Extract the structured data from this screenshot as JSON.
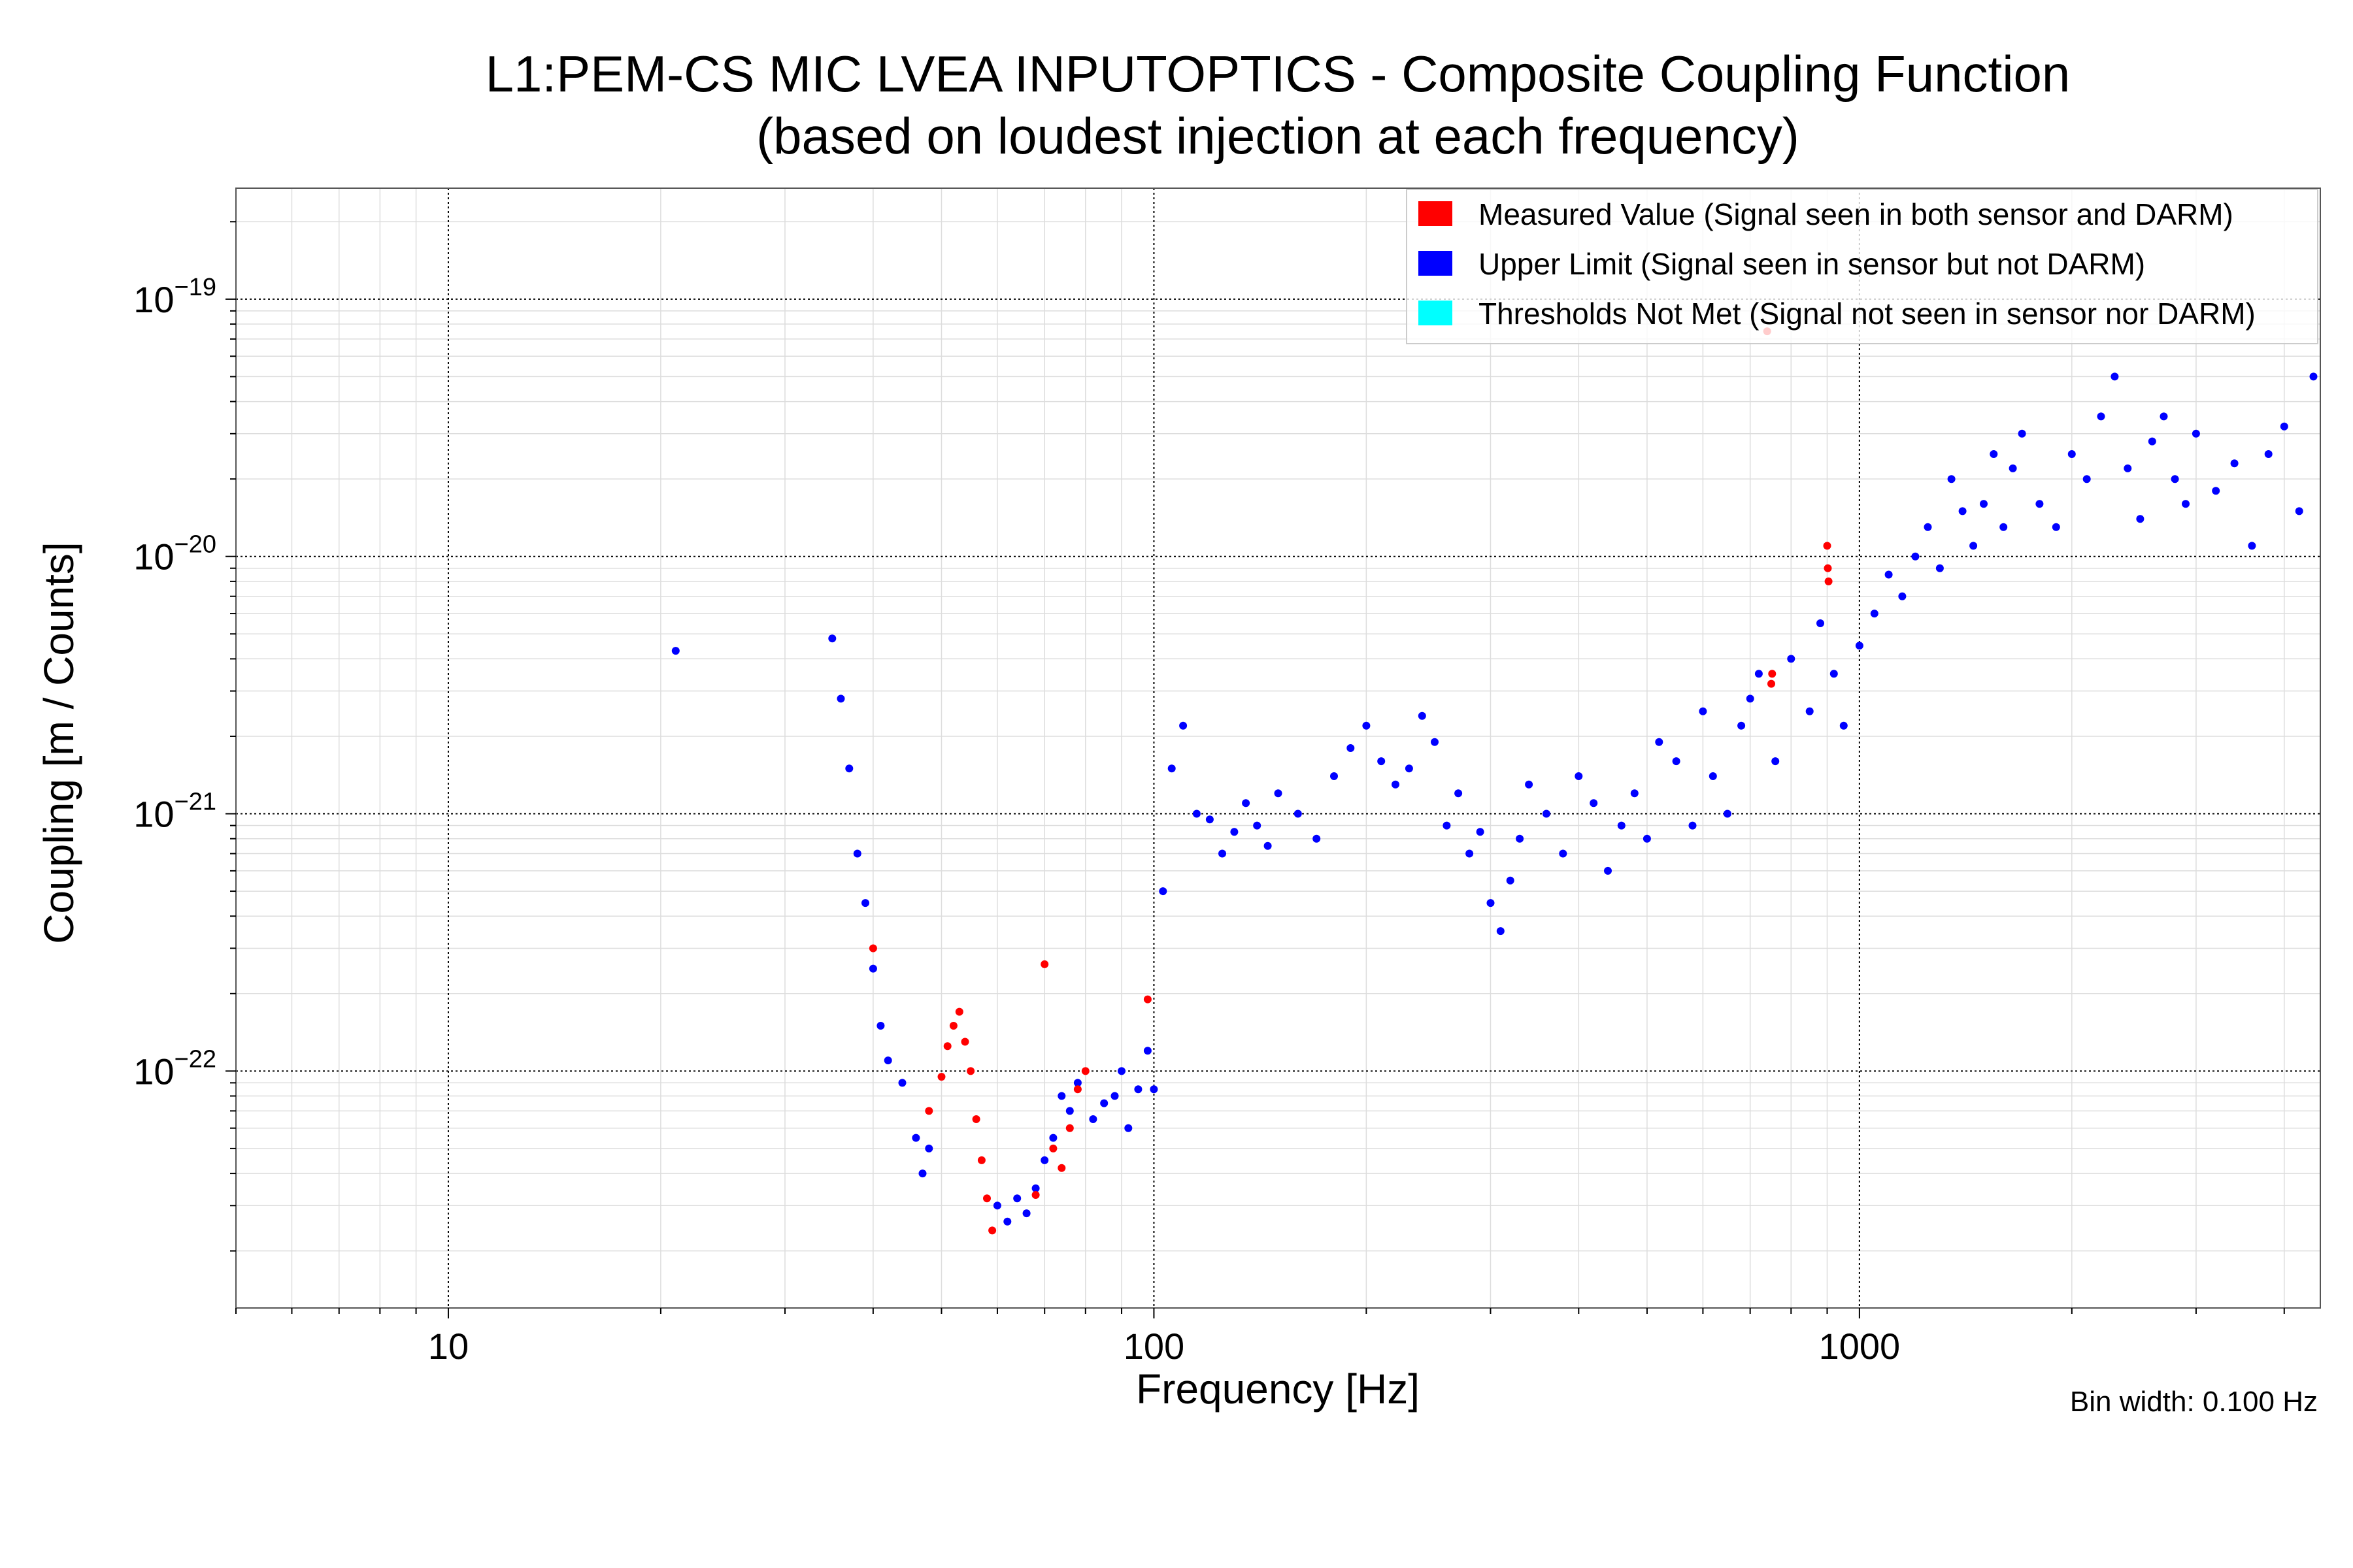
{
  "chart_data": {
    "type": "scatter",
    "title": "L1:PEM-CS MIC LVEA INPUTOPTICS - Composite Coupling Function",
    "subtitle": "(based on loudest injection at each frequency)",
    "xlabel": "Frequency [Hz]",
    "ylabel": "Coupling [m / Counts]",
    "xscale": "log",
    "yscale": "log",
    "xlim": [
      5,
      4500
    ],
    "ylim": [
      1.2e-23,
      2.7e-19
    ],
    "x_ticks": [
      {
        "value": 10,
        "label": "10"
      },
      {
        "value": 100,
        "label": "100"
      },
      {
        "value": 1000,
        "label": "1000"
      }
    ],
    "y_ticks": [
      {
        "value": 1e-22,
        "base": "10",
        "exp": "−22"
      },
      {
        "value": 1e-21,
        "base": "10",
        "exp": "−21"
      },
      {
        "value": 1e-20,
        "base": "10",
        "exp": "−20"
      },
      {
        "value": 1e-19,
        "base": "10",
        "exp": "−19"
      }
    ],
    "grid": true,
    "legend_position": "top-right",
    "annotation": "Bin width: 0.100 Hz",
    "colors": {
      "measured": "#ff0000",
      "upper_limit": "#0000ff",
      "not_met": "#00ffff"
    },
    "series": [
      {
        "name": "Measured Value (Signal seen in both sensor and DARM)",
        "key": "measured",
        "x": [
          40,
          48,
          50,
          51,
          52,
          53,
          54,
          55,
          56,
          57,
          58,
          59,
          68,
          70,
          72,
          74,
          76,
          78,
          80,
          98,
          740,
          750,
          752,
          900,
          902,
          904
        ],
        "y": [
          3e-22,
          7e-23,
          9.5e-23,
          1.25e-22,
          1.5e-22,
          1.7e-22,
          1.3e-22,
          1e-22,
          6.5e-23,
          4.5e-23,
          3.2e-23,
          2.4e-23,
          3.3e-23,
          2.6e-22,
          5e-23,
          4.2e-23,
          6e-23,
          8.5e-23,
          1e-22,
          1.9e-22,
          7.5e-20,
          3.2e-21,
          3.5e-21,
          1.1e-20,
          9e-21,
          8e-21
        ]
      },
      {
        "name": "Upper Limit (Signal seen in sensor but not DARM)",
        "key": "upper_limit",
        "x": [
          21,
          35,
          36,
          37,
          38,
          39,
          40,
          41,
          42,
          44,
          46,
          47,
          48,
          60,
          62,
          64,
          66,
          68,
          70,
          72,
          74,
          76,
          78,
          82,
          85,
          88,
          90,
          92,
          95,
          98,
          100,
          103,
          106,
          110,
          115,
          120,
          125,
          130,
          135,
          140,
          145,
          150,
          160,
          170,
          180,
          190,
          200,
          210,
          220,
          230,
          240,
          250,
          260,
          270,
          280,
          290,
          300,
          310,
          320,
          330,
          340,
          360,
          380,
          400,
          420,
          440,
          460,
          480,
          500,
          520,
          550,
          580,
          600,
          620,
          650,
          680,
          700,
          720,
          760,
          800,
          850,
          880,
          920,
          950,
          1000,
          1050,
          1100,
          1150,
          1200,
          1250,
          1300,
          1350,
          1400,
          1450,
          1500,
          1550,
          1600,
          1650,
          1700,
          1800,
          1900,
          2000,
          2100,
          2200,
          2300,
          2400,
          2500,
          2600,
          2700,
          2800,
          2900,
          3000,
          3200,
          3400,
          3600,
          3800,
          4000,
          4200,
          4400
        ],
        "y": [
          4.3e-21,
          4.8e-21,
          2.8e-21,
          1.5e-21,
          7e-22,
          4.5e-22,
          2.5e-22,
          1.5e-22,
          1.1e-22,
          9e-23,
          5.5e-23,
          4e-23,
          5e-23,
          3e-23,
          2.6e-23,
          3.2e-23,
          2.8e-23,
          3.5e-23,
          4.5e-23,
          5.5e-23,
          8e-23,
          7e-23,
          9e-23,
          6.5e-23,
          7.5e-23,
          8e-23,
          1e-22,
          6e-23,
          8.5e-23,
          1.2e-22,
          8.5e-23,
          5e-22,
          1.5e-21,
          2.2e-21,
          1e-21,
          9.5e-22,
          7e-22,
          8.5e-22,
          1.1e-21,
          9e-22,
          7.5e-22,
          1.2e-21,
          1e-21,
          8e-22,
          1.4e-21,
          1.8e-21,
          2.2e-21,
          1.6e-21,
          1.3e-21,
          1.5e-21,
          2.4e-21,
          1.9e-21,
          9e-22,
          1.2e-21,
          7e-22,
          8.5e-22,
          4.5e-22,
          3.5e-22,
          5.5e-22,
          8e-22,
          1.3e-21,
          1e-21,
          7e-22,
          1.4e-21,
          1.1e-21,
          6e-22,
          9e-22,
          1.2e-21,
          8e-22,
          1.9e-21,
          1.6e-21,
          9e-22,
          2.5e-21,
          1.4e-21,
          1e-21,
          2.2e-21,
          2.8e-21,
          3.5e-21,
          1.6e-21,
          4e-21,
          2.5e-21,
          5.5e-21,
          3.5e-21,
          2.2e-21,
          4.5e-21,
          6e-21,
          8.5e-21,
          7e-21,
          1e-20,
          1.3e-20,
          9e-21,
          2e-20,
          1.5e-20,
          1.1e-20,
          1.6e-20,
          2.5e-20,
          1.3e-20,
          2.2e-20,
          3e-20,
          1.6e-20,
          1.3e-20,
          2.5e-20,
          2e-20,
          3.5e-20,
          5e-20,
          2.2e-20,
          1.4e-20,
          2.8e-20,
          3.5e-20,
          2e-20,
          1.6e-20,
          3e-20,
          1.8e-20,
          2.3e-20,
          1.1e-20,
          2.5e-20,
          3.2e-20,
          1.5e-20,
          5e-20
        ]
      },
      {
        "name": "Thresholds Not Met (Signal not seen in sensor nor DARM)",
        "key": "not_met",
        "x": [],
        "y": []
      }
    ]
  }
}
